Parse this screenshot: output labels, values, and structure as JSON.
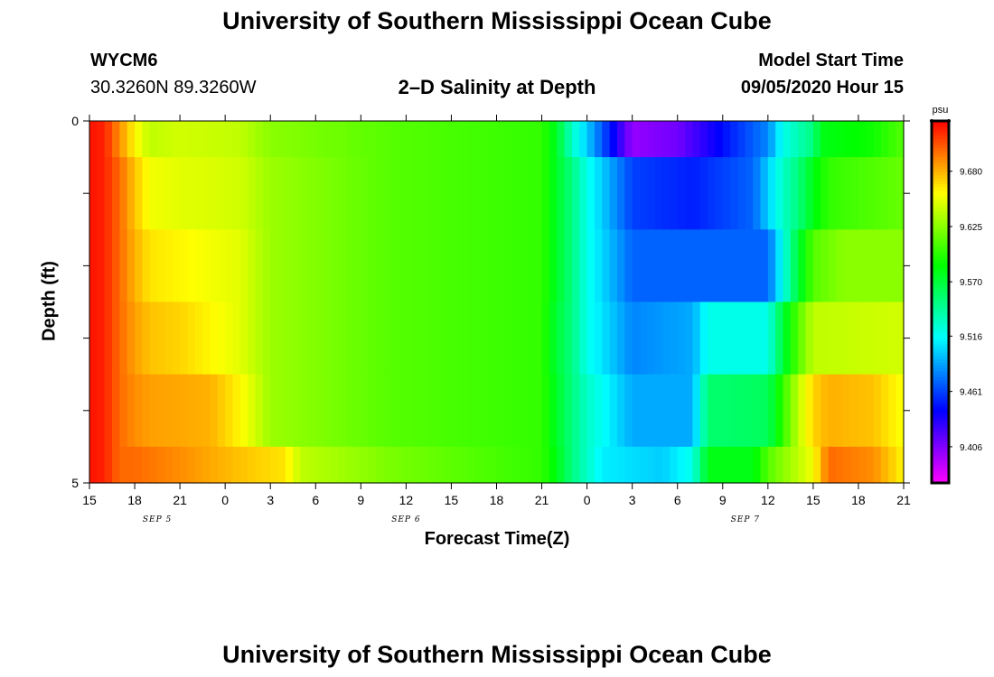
{
  "header": {
    "title": "University of Southern Mississippi Ocean Cube",
    "station_id": "WYCM6",
    "station_coords": "30.3260N 89.3260W",
    "chart_title": "2–D Salinity at Depth",
    "model_start_label": "Model Start Time",
    "model_start_value": "09/05/2020 Hour 15"
  },
  "footer": {
    "title": "University of Southern Mississippi Ocean Cube"
  },
  "chart_data": {
    "type": "heatmap",
    "title": "2–D Salinity at Depth",
    "xlabel": "Forecast Time(Z)",
    "ylabel": "Depth (ft)",
    "y_ticks": [
      "0",
      "5"
    ],
    "ylim": [
      0,
      5
    ],
    "x_tick_labels": [
      "15",
      "18",
      "21",
      "0",
      "3",
      "6",
      "9",
      "12",
      "15",
      "18",
      "21",
      "0",
      "3",
      "6",
      "9",
      "12",
      "15",
      "18",
      "21"
    ],
    "x_hours": [
      0,
      54
    ],
    "date_labels": [
      {
        "text": "SEP 5",
        "hour": 4.5
      },
      {
        "text": "SEP 6",
        "hour": 21
      },
      {
        "text": "SEP 7",
        "hour": 43.5
      }
    ],
    "colorbar": {
      "unit": "psu",
      "ticks": [
        9.406,
        9.461,
        9.516,
        9.57,
        9.625,
        9.68
      ],
      "tick_labels": [
        "9.406",
        "9.461",
        "9.516",
        "9.570",
        "9.625",
        "9.680"
      ],
      "range": [
        9.37,
        9.73
      ]
    },
    "depth_layers": [
      {
        "depth": 0.5,
        "profile": [
          [
            0,
            9.725
          ],
          [
            1,
            9.72
          ],
          [
            2,
            9.69
          ],
          [
            3,
            9.66
          ],
          [
            4,
            9.64
          ],
          [
            6,
            9.645
          ],
          [
            10,
            9.64
          ],
          [
            12,
            9.625
          ],
          [
            20,
            9.61
          ],
          [
            30,
            9.6
          ],
          [
            31,
            9.575
          ],
          [
            32,
            9.53
          ],
          [
            33,
            9.5
          ],
          [
            36,
            9.4
          ],
          [
            39,
            9.41
          ],
          [
            45,
            9.48
          ],
          [
            46,
            9.52
          ],
          [
            48,
            9.55
          ],
          [
            48.5,
            9.58
          ],
          [
            52,
            9.59
          ],
          [
            54,
            9.61
          ]
        ]
      },
      {
        "depth": 1.5,
        "profile": [
          [
            0,
            9.725
          ],
          [
            1,
            9.72
          ],
          [
            2,
            9.7
          ],
          [
            3,
            9.675
          ],
          [
            4,
            9.655
          ],
          [
            6,
            9.65
          ],
          [
            10,
            9.645
          ],
          [
            12,
            9.63
          ],
          [
            20,
            9.61
          ],
          [
            30,
            9.6
          ],
          [
            31,
            9.575
          ],
          [
            32,
            9.55
          ],
          [
            33,
            9.52
          ],
          [
            36,
            9.46
          ],
          [
            40,
            9.45
          ],
          [
            44,
            9.47
          ],
          [
            45,
            9.5
          ],
          [
            46,
            9.53
          ],
          [
            47,
            9.55
          ],
          [
            48,
            9.58
          ],
          [
            49,
            9.6
          ],
          [
            54,
            9.615
          ]
        ]
      },
      {
        "depth": 2.5,
        "profile": [
          [
            0,
            9.725
          ],
          [
            1,
            9.72
          ],
          [
            2,
            9.7
          ],
          [
            3,
            9.68
          ],
          [
            4,
            9.665
          ],
          [
            6,
            9.66
          ],
          [
            10,
            9.65
          ],
          [
            12,
            9.63
          ],
          [
            20,
            9.61
          ],
          [
            30,
            9.6
          ],
          [
            31,
            9.575
          ],
          [
            32,
            9.55
          ],
          [
            33,
            9.52
          ],
          [
            36,
            9.47
          ],
          [
            40,
            9.47
          ],
          [
            45,
            9.47
          ],
          [
            46,
            9.52
          ],
          [
            47,
            9.57
          ],
          [
            48,
            9.61
          ],
          [
            50,
            9.625
          ],
          [
            54,
            9.625
          ]
        ]
      },
      {
        "depth": 3.5,
        "profile": [
          [
            0,
            9.725
          ],
          [
            1,
            9.72
          ],
          [
            2,
            9.7
          ],
          [
            3,
            9.685
          ],
          [
            4,
            9.675
          ],
          [
            6,
            9.67
          ],
          [
            10,
            9.65
          ],
          [
            12,
            9.63
          ],
          [
            20,
            9.61
          ],
          [
            30,
            9.6
          ],
          [
            31,
            9.57
          ],
          [
            32,
            9.55
          ],
          [
            33,
            9.52
          ],
          [
            36,
            9.48
          ],
          [
            40,
            9.49
          ],
          [
            41,
            9.52
          ],
          [
            45,
            9.52
          ],
          [
            46,
            9.57
          ],
          [
            47,
            9.61
          ],
          [
            48,
            9.64
          ],
          [
            54,
            9.645
          ]
        ]
      },
      {
        "depth": 4.5,
        "profile": [
          [
            0,
            9.725
          ],
          [
            1,
            9.72
          ],
          [
            2,
            9.7
          ],
          [
            3,
            9.69
          ],
          [
            4,
            9.685
          ],
          [
            8,
            9.68
          ],
          [
            10,
            9.66
          ],
          [
            12,
            9.63
          ],
          [
            20,
            9.61
          ],
          [
            30,
            9.6
          ],
          [
            31,
            9.575
          ],
          [
            32,
            9.55
          ],
          [
            33,
            9.53
          ],
          [
            36,
            9.49
          ],
          [
            40,
            9.49
          ],
          [
            41,
            9.555
          ],
          [
            45,
            9.56
          ],
          [
            46,
            9.6
          ],
          [
            47,
            9.64
          ],
          [
            48,
            9.67
          ],
          [
            49,
            9.68
          ],
          [
            52,
            9.675
          ],
          [
            54,
            9.655
          ]
        ]
      },
      {
        "depth": 5.0,
        "profile": [
          [
            0,
            9.725
          ],
          [
            1,
            9.72
          ],
          [
            2,
            9.7
          ],
          [
            3,
            9.7
          ],
          [
            6,
            9.69
          ],
          [
            10,
            9.675
          ],
          [
            13,
            9.665
          ],
          [
            14,
            9.64
          ],
          [
            20,
            9.62
          ],
          [
            30,
            9.6
          ],
          [
            31,
            9.58
          ],
          [
            32,
            9.55
          ],
          [
            33,
            9.53
          ],
          [
            34,
            9.51
          ],
          [
            38,
            9.5
          ],
          [
            40,
            9.52
          ],
          [
            41,
            9.58
          ],
          [
            44,
            9.58
          ],
          [
            45,
            9.61
          ],
          [
            48,
            9.655
          ],
          [
            49,
            9.7
          ],
          [
            52,
            9.69
          ],
          [
            54,
            9.66
          ]
        ]
      }
    ]
  }
}
